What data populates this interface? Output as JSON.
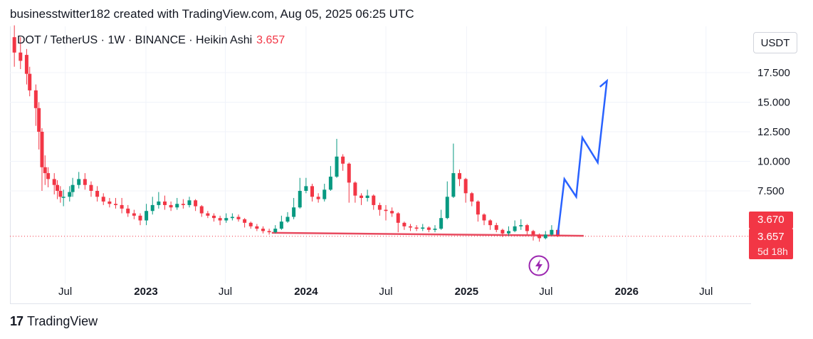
{
  "header": {
    "caption": "businesstwitter182 created with TradingView.com, Aug 05, 2025 06:25 UTC"
  },
  "legend": {
    "symbol": "DOT / TetherUS",
    "interval": "1W",
    "exchange": "BINANCE",
    "chart_style": "Heikin Ashi",
    "price": "3.657",
    "separator": " · "
  },
  "currency_button": {
    "label": "USDT"
  },
  "price_tags": {
    "high": "3.670",
    "last": "3.657",
    "countdown": "5d 18h"
  },
  "footer": {
    "logo_text": "TradingView",
    "logo_mark": "17"
  },
  "event_icon": "lightning-icon",
  "colors": {
    "up": "#089981",
    "down": "#f23645",
    "projection": "#2962ff",
    "support": "#e84a5f",
    "grid": "#f0f3fa"
  },
  "chart_data": {
    "type": "candlestick",
    "y_axis": {
      "ticks": [
        "7.500",
        "10.000",
        "12.500",
        "15.000",
        "17.500"
      ],
      "tick_values": [
        7.5,
        10,
        12.5,
        15,
        17.5
      ],
      "range": [
        0,
        20.5
      ],
      "unit": "USDT"
    },
    "x_axis": {
      "ticks": [
        {
          "label": "Jul",
          "date": "2022-07-01",
          "bold": false
        },
        {
          "label": "2023",
          "date": "2023-01-01",
          "bold": true
        },
        {
          "label": "Jul",
          "date": "2023-07-01",
          "bold": false
        },
        {
          "label": "2024",
          "date": "2024-01-01",
          "bold": true
        },
        {
          "label": "Jul",
          "date": "2024-07-01",
          "bold": false
        },
        {
          "label": "2025",
          "date": "2025-01-01",
          "bold": true
        },
        {
          "label": "Jul",
          "date": "2025-07-01",
          "bold": false
        },
        {
          "label": "2026",
          "date": "2026-01-01",
          "bold": true
        },
        {
          "label": "Jul",
          "date": "2026-07-01",
          "bold": false
        }
      ],
      "range": [
        "2022-02-25",
        "2026-10-10"
      ]
    },
    "candles": [
      [
        "2022-03-07",
        20.5,
        19.2,
        21.5,
        18.0
      ],
      [
        "2022-03-21",
        19.2,
        18.5,
        20.5,
        17.8
      ],
      [
        "2022-04-04",
        19.0,
        17.4,
        19.5,
        16.5
      ],
      [
        "2022-04-11",
        17.4,
        16.0,
        18.0,
        15.5
      ],
      [
        "2022-04-25",
        16.0,
        14.5,
        16.5,
        13.0
      ],
      [
        "2022-05-02",
        14.5,
        12.5,
        15.0,
        11.0
      ],
      [
        "2022-05-09",
        12.5,
        9.5,
        12.8,
        7.5
      ],
      [
        "2022-05-16",
        9.5,
        9.0,
        10.5,
        8.0
      ],
      [
        "2022-05-23",
        9.0,
        8.5,
        9.5,
        7.8
      ],
      [
        "2022-06-06",
        8.5,
        8.0,
        9.0,
        7.2
      ],
      [
        "2022-06-13",
        8.0,
        7.5,
        8.4,
        6.8
      ],
      [
        "2022-06-20",
        7.5,
        7.0,
        7.9,
        6.5
      ],
      [
        "2022-06-27",
        7.0,
        7.0,
        7.6,
        6.2
      ],
      [
        "2022-07-11",
        7.0,
        7.4,
        7.9,
        6.6
      ],
      [
        "2022-07-18",
        7.4,
        8.0,
        8.6,
        7.0
      ],
      [
        "2022-08-01",
        8.0,
        8.5,
        9.1,
        7.7
      ],
      [
        "2022-08-15",
        8.5,
        8.0,
        9.0,
        7.6
      ],
      [
        "2022-08-29",
        8.0,
        7.5,
        8.3,
        7.0
      ],
      [
        "2022-09-12",
        7.5,
        7.0,
        7.9,
        6.6
      ],
      [
        "2022-09-26",
        7.0,
        6.6,
        7.3,
        6.3
      ],
      [
        "2022-10-10",
        6.6,
        6.4,
        6.9,
        6.1
      ],
      [
        "2022-10-24",
        6.4,
        6.3,
        6.9,
        6.0
      ],
      [
        "2022-11-07",
        6.3,
        6.0,
        6.9,
        5.6
      ],
      [
        "2022-11-21",
        6.0,
        5.6,
        6.3,
        5.3
      ],
      [
        "2022-12-05",
        5.6,
        5.4,
        5.9,
        5.1
      ],
      [
        "2022-12-19",
        5.4,
        5.0,
        5.6,
        4.6
      ],
      [
        "2023-01-02",
        5.0,
        5.8,
        6.4,
        4.6
      ],
      [
        "2023-01-16",
        5.8,
        6.3,
        7.0,
        5.5
      ],
      [
        "2023-01-30",
        6.3,
        6.6,
        7.4,
        6.0
      ],
      [
        "2023-02-13",
        6.6,
        6.3,
        7.1,
        5.9
      ],
      [
        "2023-02-27",
        6.3,
        6.1,
        6.6,
        5.8
      ],
      [
        "2023-03-13",
        6.1,
        6.4,
        6.9,
        5.9
      ],
      [
        "2023-03-27",
        6.4,
        6.3,
        6.8,
        6.0
      ],
      [
        "2023-04-10",
        6.3,
        6.7,
        7.0,
        6.1
      ],
      [
        "2023-04-24",
        6.7,
        6.2,
        6.8,
        5.8
      ],
      [
        "2023-05-08",
        6.2,
        5.6,
        6.3,
        5.3
      ],
      [
        "2023-05-22",
        5.6,
        5.4,
        5.8,
        5.2
      ],
      [
        "2023-06-05",
        5.4,
        5.2,
        5.6,
        4.9
      ],
      [
        "2023-06-19",
        5.2,
        5.0,
        5.4,
        4.6
      ],
      [
        "2023-07-03",
        5.0,
        5.2,
        5.6,
        4.8
      ],
      [
        "2023-07-17",
        5.2,
        5.3,
        5.6,
        5.0
      ],
      [
        "2023-07-31",
        5.3,
        5.1,
        5.5,
        4.9
      ],
      [
        "2023-08-14",
        5.1,
        4.8,
        5.2,
        4.4
      ],
      [
        "2023-08-28",
        4.8,
        4.5,
        4.9,
        4.3
      ],
      [
        "2023-09-11",
        4.5,
        4.3,
        4.7,
        4.1
      ],
      [
        "2023-09-25",
        4.3,
        4.1,
        4.5,
        3.9
      ],
      [
        "2023-10-09",
        4.1,
        4.0,
        4.3,
        3.8
      ],
      [
        "2023-10-23",
        4.0,
        4.3,
        4.6,
        3.9
      ],
      [
        "2023-11-06",
        4.3,
        4.9,
        5.4,
        4.2
      ],
      [
        "2023-11-20",
        4.9,
        5.3,
        5.7,
        4.8
      ],
      [
        "2023-12-04",
        5.3,
        6.1,
        6.9,
        5.1
      ],
      [
        "2023-12-18",
        6.1,
        7.5,
        8.6,
        6.0
      ],
      [
        "2024-01-01",
        7.5,
        7.9,
        8.6,
        7.3
      ],
      [
        "2024-01-15",
        7.9,
        7.0,
        8.1,
        6.6
      ],
      [
        "2024-01-29",
        7.0,
        6.8,
        7.3,
        6.5
      ],
      [
        "2024-02-12",
        6.8,
        7.6,
        8.1,
        6.6
      ],
      [
        "2024-02-26",
        7.6,
        8.7,
        9.6,
        7.5
      ],
      [
        "2024-03-11",
        8.7,
        10.4,
        11.9,
        8.6
      ],
      [
        "2024-03-25",
        10.4,
        9.8,
        10.6,
        9.2
      ],
      [
        "2024-04-08",
        9.8,
        8.2,
        9.9,
        6.5
      ],
      [
        "2024-04-22",
        8.2,
        7.1,
        8.3,
        6.5
      ],
      [
        "2024-05-06",
        7.1,
        6.9,
        7.3,
        6.3
      ],
      [
        "2024-05-20",
        6.9,
        7.1,
        7.6,
        6.6
      ],
      [
        "2024-06-03",
        7.1,
        6.3,
        7.2,
        5.9
      ],
      [
        "2024-06-17",
        6.3,
        5.9,
        6.5,
        5.4
      ],
      [
        "2024-07-01",
        5.9,
        5.8,
        6.3,
        5.0
      ],
      [
        "2024-07-15",
        5.8,
        5.6,
        6.1,
        5.3
      ],
      [
        "2024-07-29",
        5.6,
        4.8,
        5.7,
        4.0
      ],
      [
        "2024-08-12",
        4.8,
        4.5,
        4.9,
        4.2
      ],
      [
        "2024-08-26",
        4.5,
        4.4,
        4.7,
        4.1
      ],
      [
        "2024-09-09",
        4.4,
        4.3,
        4.6,
        4.1
      ],
      [
        "2024-09-23",
        4.3,
        4.4,
        4.7,
        4.1
      ],
      [
        "2024-10-07",
        4.4,
        4.2,
        4.5,
        4.0
      ],
      [
        "2024-10-21",
        4.2,
        4.3,
        4.6,
        4.0
      ],
      [
        "2024-11-04",
        4.3,
        5.2,
        5.9,
        4.2
      ],
      [
        "2024-11-18",
        5.2,
        7.0,
        8.3,
        5.1
      ],
      [
        "2024-12-02",
        7.0,
        9.0,
        11.5,
        6.9
      ],
      [
        "2024-12-16",
        9.0,
        8.5,
        9.3,
        7.9
      ],
      [
        "2024-12-30",
        8.5,
        7.3,
        8.6,
        6.5
      ],
      [
        "2025-01-13",
        7.3,
        6.6,
        7.4,
        6.2
      ],
      [
        "2025-01-27",
        6.6,
        5.5,
        6.7,
        4.9
      ],
      [
        "2025-02-10",
        5.5,
        5.0,
        5.6,
        4.6
      ],
      [
        "2025-02-24",
        5.0,
        4.6,
        5.1,
        4.2
      ],
      [
        "2025-03-10",
        4.6,
        4.2,
        4.8,
        4.0
      ],
      [
        "2025-03-24",
        4.2,
        3.9,
        4.3,
        3.6
      ],
      [
        "2025-04-07",
        3.9,
        4.1,
        4.5,
        3.7
      ],
      [
        "2025-04-21",
        4.1,
        4.5,
        5.0,
        4.0
      ],
      [
        "2025-05-05",
        4.5,
        4.6,
        5.1,
        4.2
      ],
      [
        "2025-05-19",
        4.6,
        4.1,
        4.7,
        3.8
      ],
      [
        "2025-06-02",
        4.1,
        3.8,
        4.2,
        3.3
      ],
      [
        "2025-06-16",
        3.8,
        3.5,
        3.9,
        3.2
      ],
      [
        "2025-06-30",
        3.5,
        3.8,
        4.1,
        3.4
      ],
      [
        "2025-07-14",
        3.8,
        4.2,
        4.6,
        3.7
      ],
      [
        "2025-07-28",
        4.2,
        3.66,
        4.3,
        3.6
      ]
    ],
    "overlays": {
      "support_line": {
        "from": [
          "2023-10-15",
          3.95
        ],
        "to": [
          "2025-09-25",
          3.7
        ]
      },
      "projection_path": [
        [
          "2025-07-28",
          3.8
        ],
        [
          "2025-08-12",
          8.5
        ],
        [
          "2025-09-08",
          7.0
        ],
        [
          "2025-09-22",
          12.0
        ],
        [
          "2025-10-27",
          9.9
        ],
        [
          "2025-11-17",
          16.8
        ],
        [
          "2025-11-17",
          16.8
        ],
        [
          "2025-11-01",
          16.3
        ]
      ],
      "projection_arrow_tip": [
        "2025-11-17",
        16.8
      ],
      "last_price_line": 3.657
    }
  }
}
